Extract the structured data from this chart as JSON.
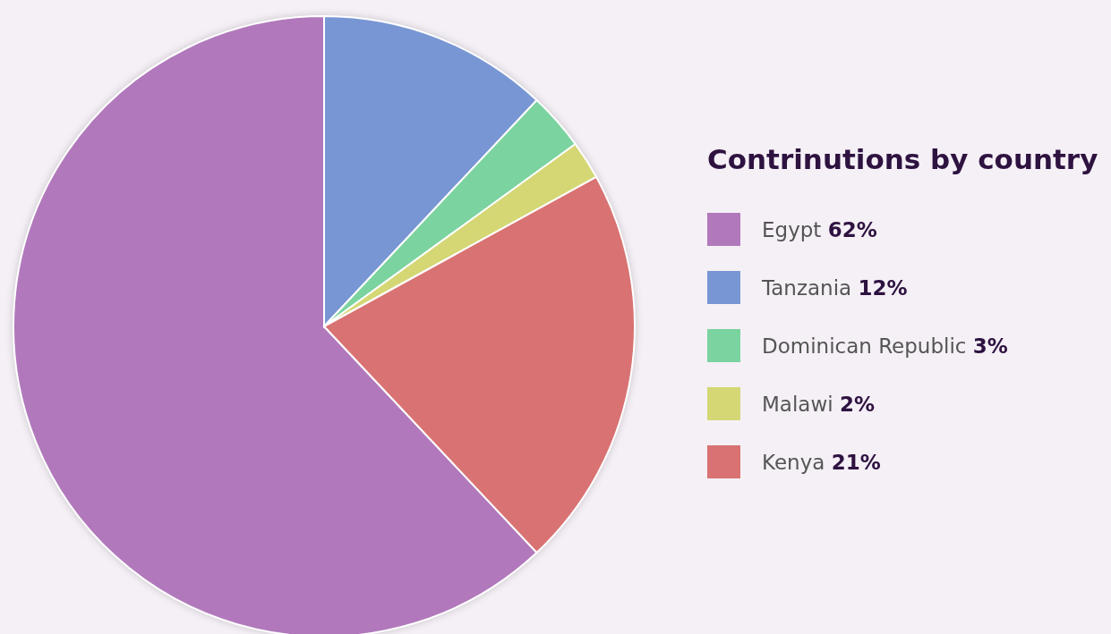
{
  "chart_data": {
    "type": "pie",
    "legend_title": "Contrinutions by country",
    "legend": "right",
    "categories": [
      "Egypt",
      "Tanzania",
      "Dominican Republic",
      "Malawi",
      "Kenya"
    ],
    "values": [
      62,
      12,
      3,
      2,
      21
    ],
    "value_labels": [
      "62%",
      "12%",
      "3%",
      "2%",
      "21%"
    ],
    "colors": [
      "#b179bc",
      "#7996d4",
      "#7bd3a0",
      "#d4d774",
      "#d97272"
    ]
  }
}
